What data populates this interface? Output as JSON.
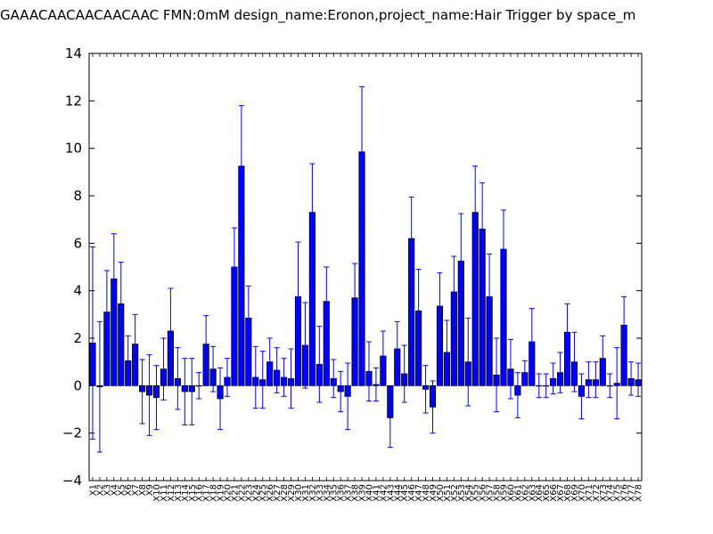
{
  "chart_data": {
    "type": "bar",
    "title": "GAAACAACAACAACAAC  FMN:0mM  design_name:Eronon,project_name:Hair Trigger by space_m",
    "xlabel": "",
    "ylabel": "",
    "ylim": [
      -4,
      14
    ],
    "yticks": [
      -4,
      -2,
      0,
      2,
      4,
      6,
      8,
      10,
      12,
      14
    ],
    "grid": false,
    "bar_color": "#0000ff",
    "error_color": "#0000ff",
    "categories": [
      "X1",
      "X2",
      "X3",
      "X4",
      "X5",
      "X6",
      "X7",
      "X8",
      "X9",
      "X10",
      "X11",
      "X12",
      "X13",
      "X14",
      "X15",
      "X16",
      "X17",
      "X18",
      "X19",
      "X20",
      "X21",
      "X22",
      "X23",
      "X24",
      "X25",
      "X26",
      "X27",
      "X28",
      "X29",
      "X30",
      "X31",
      "X32",
      "X33",
      "X34",
      "X35",
      "X36",
      "X37",
      "X38",
      "X39",
      "X40",
      "X41",
      "X42",
      "X43",
      "X44",
      "X45",
      "X46",
      "X47",
      "X48",
      "X49",
      "X50",
      "X51",
      "X52",
      "X53",
      "X54",
      "X55",
      "X56",
      "X57",
      "X58",
      "X59",
      "X60",
      "X61",
      "X62",
      "X63",
      "X64",
      "X65",
      "X66",
      "X67",
      "X68",
      "X69",
      "X70",
      "X71",
      "X72",
      "X73",
      "X74",
      "X75",
      "X76",
      "X77",
      "X78"
    ],
    "values": [
      1.8,
      -0.05,
      3.1,
      4.5,
      3.45,
      1.05,
      1.75,
      -0.25,
      -0.4,
      -0.5,
      0.7,
      2.3,
      0.3,
      -0.25,
      -0.25,
      0.0,
      1.75,
      0.7,
      -0.55,
      0.35,
      5.0,
      9.25,
      2.85,
      0.35,
      0.25,
      1.0,
      0.65,
      0.35,
      0.3,
      3.75,
      1.7,
      7.3,
      0.9,
      3.55,
      0.3,
      -0.25,
      -0.45,
      3.7,
      9.85,
      0.6,
      0.05,
      1.25,
      -1.35,
      1.55,
      0.5,
      6.2,
      3.15,
      -0.15,
      -0.9,
      3.35,
      1.4,
      3.95,
      5.25,
      1.0,
      7.3,
      6.6,
      3.75,
      0.45,
      5.75,
      0.7,
      -0.4,
      0.55,
      1.85,
      0.0,
      0.0,
      0.3,
      0.55,
      2.25,
      1.0,
      -0.45,
      0.25,
      0.25,
      1.15,
      0.0,
      0.1,
      2.55,
      0.3,
      0.25
    ],
    "errors": [
      4.05,
      2.75,
      1.75,
      1.9,
      1.75,
      1.05,
      1.25,
      1.35,
      1.7,
      1.35,
      1.3,
      1.8,
      1.3,
      1.4,
      1.4,
      0.55,
      1.2,
      0.95,
      1.3,
      0.8,
      1.65,
      2.55,
      1.35,
      1.3,
      1.2,
      1.0,
      0.95,
      0.8,
      1.25,
      2.3,
      1.8,
      2.05,
      1.6,
      1.45,
      0.8,
      0.85,
      1.4,
      1.45,
      2.75,
      1.25,
      0.7,
      1.05,
      1.25,
      1.15,
      1.2,
      1.75,
      1.75,
      1.0,
      1.1,
      1.4,
      1.35,
      1.5,
      2.0,
      1.85,
      1.95,
      1.95,
      1.8,
      1.55,
      1.65,
      1.25,
      0.95,
      0.5,
      1.4,
      0.5,
      0.5,
      0.65,
      0.85,
      1.2,
      1.25,
      0.95,
      0.75,
      0.75,
      0.95,
      0.5,
      1.5,
      1.2,
      0.7,
      0.7
    ]
  }
}
